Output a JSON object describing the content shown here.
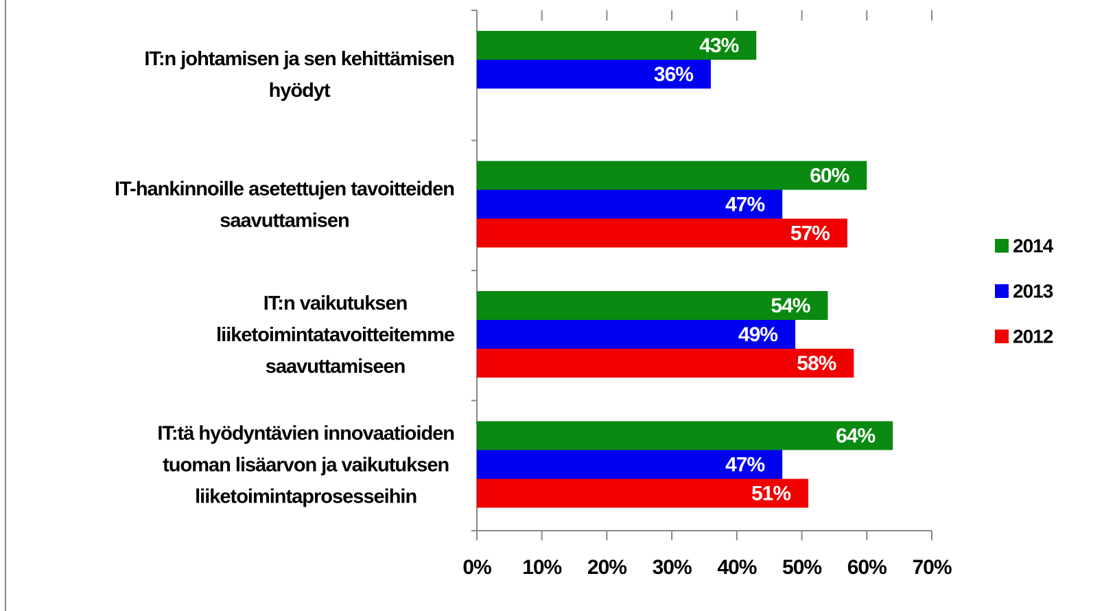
{
  "chart_data": {
    "type": "bar",
    "orientation": "horizontal",
    "categories": [
      "IT:n johtamisen ja sen kehittämisen\nhyödyt",
      "IT-hankinnoille asetettujen tavoitteiden\nsaavuttamisen",
      "IT:n vaikutuksen\nliiketoimintatavoitteitemme\nsaavuttamiseen",
      "IT:tä hyödyntävien innovaatioiden\ntuoman lisäarvon ja vaikutuksen\nliiketoimintaprosesseihin"
    ],
    "series": [
      {
        "name": "2014",
        "color": "#0a8a10",
        "values": [
          43,
          60,
          54,
          64
        ],
        "value_labels": [
          "43%",
          "60%",
          "54%",
          "64%"
        ]
      },
      {
        "name": "2013",
        "color": "#0000f0",
        "values": [
          36,
          47,
          49,
          47
        ],
        "value_labels": [
          "36%",
          "47%",
          "49%",
          "47%"
        ]
      },
      {
        "name": "2012",
        "color": "#f00000",
        "values": [
          null,
          57,
          58,
          51
        ],
        "value_labels": [
          null,
          "57%",
          "58%",
          "51%"
        ]
      }
    ],
    "xlim": [
      0,
      70
    ],
    "xticks": [
      {
        "value": 0,
        "label": "0%"
      },
      {
        "value": 10,
        "label": "10%"
      },
      {
        "value": 20,
        "label": "20%"
      },
      {
        "value": 30,
        "label": "30%"
      },
      {
        "value": 40,
        "label": "40%"
      },
      {
        "value": 50,
        "label": "50%"
      },
      {
        "value": 60,
        "label": "60%"
      },
      {
        "value": 70,
        "label": "70%"
      }
    ],
    "legend": "right"
  }
}
